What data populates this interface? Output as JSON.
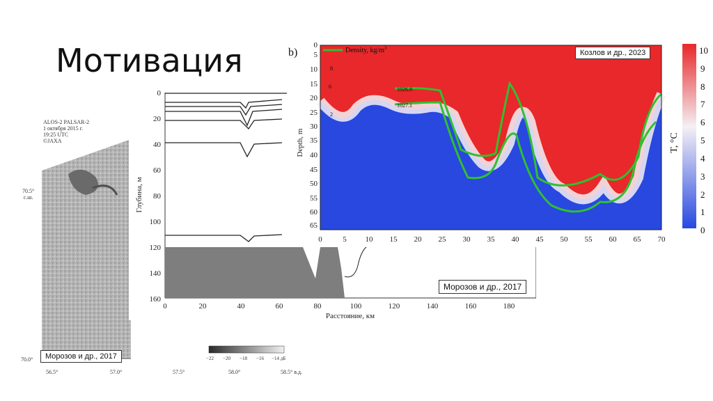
{
  "slide": {
    "title": "Мотивация"
  },
  "sar_panel": {
    "header_lines": [
      "ALOS-2 PALSAR-2",
      "1 октября 2015 г.",
      "19:25 UTC",
      "©JAXA"
    ],
    "lat_labels": [
      "70.5°\nс.ш.",
      "70.0°"
    ],
    "lat_top": "70.5°",
    "lat_top_unit": "с.ш.",
    "lat_bottom": "70.0°",
    "lon_labels": [
      "56.5°",
      "57.0°",
      "57.5°",
      "58.0°",
      "58.5° в.д."
    ],
    "colorbar_ticks": [
      "−22",
      "−20",
      "−18",
      "−16",
      "−14 дБ"
    ],
    "caption": "Морозов и др., 2017"
  },
  "depth_panel": {
    "y_ticks": [
      "0",
      "20",
      "40",
      "60",
      "80",
      "100",
      "120",
      "140",
      "160"
    ],
    "x_ticks": [
      "0",
      "20",
      "40",
      "60",
      "80",
      "100",
      "120",
      "140",
      "160",
      "180"
    ],
    "ylabel": "Глубина, м",
    "xlabel": "Расстояние, км",
    "caption": "Морозов и др., 2017"
  },
  "temp_panel": {
    "panel_letter": "b)",
    "legend": "Density, kg/m",
    "legend_sup": "3",
    "caption": "Козлов и др., 2023",
    "y_ticks": [
      "0",
      "5",
      "10",
      "15",
      "20",
      "25",
      "30",
      "35",
      "40",
      "45",
      "50",
      "55",
      "60",
      "65"
    ],
    "x_ticks": [
      "0",
      "5",
      "10",
      "15",
      "20",
      "25",
      "30",
      "35",
      "40",
      "45",
      "50",
      "55",
      "60",
      "65",
      "70"
    ],
    "ylabel": "Depth, m",
    "contour_labels": [
      "1026.8",
      "1027.1",
      "1026.8",
      "1027.1",
      "8",
      "6",
      "4",
      "2",
      "4",
      "6",
      "8"
    ],
    "colorbar_ticks": [
      "10",
      "9",
      "8",
      "7",
      "6",
      "5",
      "4",
      "3",
      "2",
      "1",
      "0"
    ],
    "colorbar_label": "T, °C",
    "colors": {
      "warm": "#e8282a",
      "cold": "#2848e0",
      "mid": "#f4f0f4",
      "density": "#30c030"
    }
  }
}
